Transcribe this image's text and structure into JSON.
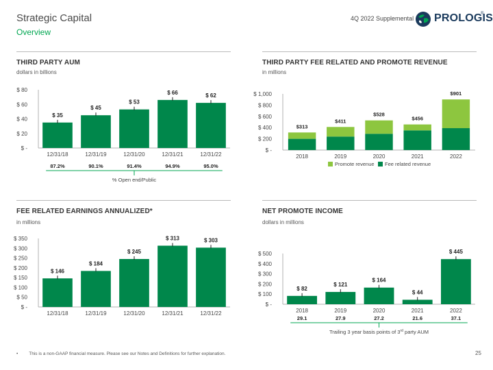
{
  "header": {
    "title": "Strategic Capital",
    "subtitle": "Overview",
    "supplemental": "4Q 2022 Supplemental",
    "logo_text": "PROLOGIS",
    "logo_mark": "®"
  },
  "colors": {
    "bar_green": "#00874b",
    "promote_green": "#8dc63f",
    "accent_green": "#00a651",
    "axis_gray": "#999999",
    "text_dark": "#333333"
  },
  "sections": {
    "aum": {
      "title": "THIRD PARTY AUM",
      "subtitle": "dollars in billions"
    },
    "fee_rev": {
      "title": "THIRD PARTY FEE RELATED AND PROMOTE REVENUE",
      "subtitle": "in millions"
    },
    "fre": {
      "title": "FEE RELATED EARNINGS ANNUALIZED*",
      "subtitle": "in millions"
    },
    "npi": {
      "title": "NET PROMOTE INCOME",
      "subtitle": "dollars in millions"
    }
  },
  "chart_data": [
    {
      "id": "aum",
      "type": "bar",
      "title": "THIRD PARTY AUM",
      "ylabel": "dollars in billions",
      "categories": [
        "12/31/18",
        "12/31/19",
        "12/31/20",
        "12/31/21",
        "12/31/22"
      ],
      "values": [
        35,
        45,
        53,
        66,
        62
      ],
      "value_labels": [
        "$ 35",
        "$ 45",
        "$ 53",
        "$ 66",
        "$ 62"
      ],
      "ylim": [
        0,
        80
      ],
      "yticks": [
        0,
        20,
        40,
        60,
        80
      ],
      "ytick_labels": [
        "$ -",
        "$ 20",
        "$ 40",
        "$ 60",
        "$ 80"
      ],
      "bottom_values": [
        "87.2%",
        "90.1%",
        "91.4%",
        "94.9%",
        "95.0%"
      ],
      "bottom_caption": "% Open end/Public"
    },
    {
      "id": "fee_rev",
      "type": "bar",
      "stacked": true,
      "title": "THIRD PARTY FEE RELATED AND PROMOTE REVENUE",
      "ylabel": "in millions",
      "categories": [
        "2018",
        "2019",
        "2020",
        "2021",
        "2022"
      ],
      "series": [
        {
          "name": "Fee related revenue",
          "values": [
            200,
            240,
            290,
            350,
            390
          ]
        },
        {
          "name": "Promote revenue",
          "values": [
            113,
            171,
            238,
            106,
            511
          ]
        }
      ],
      "totals": [
        313,
        411,
        528,
        456,
        901
      ],
      "total_labels": [
        "$313",
        "$411",
        "$528",
        "$456",
        "$901"
      ],
      "ylim": [
        0,
        1000
      ],
      "yticks": [
        0,
        200,
        400,
        600,
        800,
        1000
      ],
      "ytick_labels": [
        "$ -",
        "$ 200",
        "$ 400",
        "$ 600",
        "$ 800",
        "$ 1,000"
      ],
      "legend": [
        "Promote revenue",
        "Fee related revenue"
      ],
      "legend_position": "bottom"
    },
    {
      "id": "fre",
      "type": "bar",
      "title": "FEE RELATED EARNINGS ANNUALIZED*",
      "ylabel": "in millions",
      "categories": [
        "12/31/18",
        "12/31/19",
        "12/31/20",
        "12/31/21",
        "12/31/22"
      ],
      "values": [
        146,
        184,
        245,
        313,
        303
      ],
      "value_labels": [
        "$ 146",
        "$ 184",
        "$ 245",
        "$ 313",
        "$ 303"
      ],
      "ylim": [
        0,
        350
      ],
      "yticks": [
        0,
        50,
        100,
        150,
        200,
        250,
        300,
        350
      ],
      "ytick_labels": [
        "$ -",
        "$ 50",
        "$ 100",
        "$ 150",
        "$ 200",
        "$ 250",
        "$ 300",
        "$ 350"
      ]
    },
    {
      "id": "npi",
      "type": "bar",
      "title": "NET PROMOTE INCOME",
      "ylabel": "dollars in millions",
      "categories": [
        "2018",
        "2019",
        "2020",
        "2021",
        "2022"
      ],
      "values": [
        82,
        121,
        164,
        44,
        445
      ],
      "value_labels": [
        "$ 82",
        "$ 121",
        "$ 164",
        "$ 44",
        "$ 445"
      ],
      "ylim": [
        0,
        500
      ],
      "yticks": [
        0,
        100,
        200,
        300,
        400,
        500
      ],
      "ytick_labels": [
        "$ -",
        "$ 100",
        "$ 200",
        "$ 300",
        "$ 400",
        "$ 500"
      ],
      "bottom_values": [
        "29.1",
        "27.9",
        "27.2",
        "21.6",
        "37.1"
      ],
      "bottom_caption_pre": "Trailing 3 year basis points of 3",
      "bottom_caption_sup": "rd",
      "bottom_caption_post": " party AUM"
    }
  ],
  "footer": {
    "marker": "•",
    "footnote": "This is a non-GAAP financial measure. Please see our Notes and Definitions for further explanation.",
    "page_number": "25"
  }
}
